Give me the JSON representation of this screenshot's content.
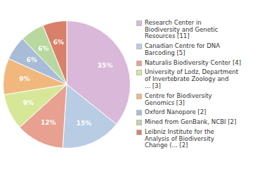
{
  "chart_data": {
    "type": "pie",
    "categories": [
      "Research Center in\nBiodiversity and Genetic\nResources [11]",
      "Canadian Centre for DNA\nBarcoding [5]",
      "Naturalis Biodiversity Center [4]",
      "University of Lodz, Department\nof Invertebrate Zoology and\n... [3]",
      "Centre for Biodiversity\nGenomics [3]",
      "Oxford Nanopore [2]",
      "Mined from GenBank, NCBI [2]",
      "Leibniz Institute for the\nAnalysis of Biodiversity\nChange (... [2]"
    ],
    "values": [
      35,
      15,
      12,
      9,
      9,
      6,
      6,
      6
    ],
    "value_labels": [
      "35%",
      "15%",
      "12%",
      "9%",
      "9%",
      "6%",
      "6%",
      "6%"
    ],
    "colors": [
      "#d9b8d9",
      "#b8cce4",
      "#e8a090",
      "#d6e898",
      "#f0b87c",
      "#a8bcd8",
      "#b8d8a0",
      "#d8806a"
    ],
    "data_labels": true,
    "legend": "right"
  }
}
